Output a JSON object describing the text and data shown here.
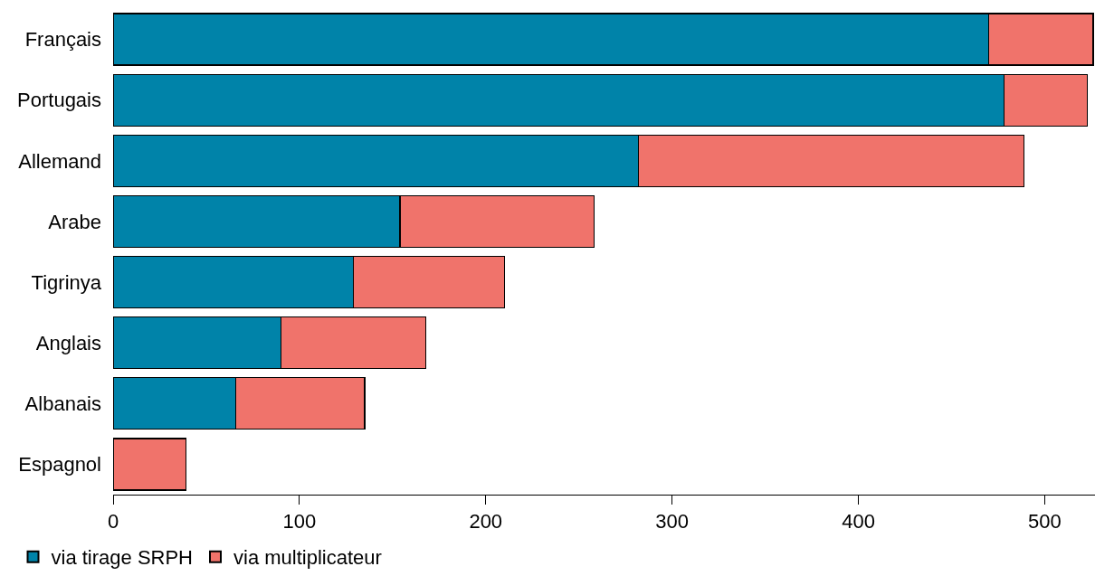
{
  "chart_data": {
    "type": "bar",
    "orientation": "horizontal",
    "stacked": true,
    "categories": [
      "Français",
      "Portugais",
      "Allemand",
      "Arabe",
      "Tigrinya",
      "Anglais",
      "Albanais",
      "Espagnol"
    ],
    "series": [
      {
        "name": "via tirage SRPH",
        "color": "#0083a9",
        "values": [
          470,
          478,
          282,
          154,
          129,
          90,
          66,
          0
        ]
      },
      {
        "name": "via multiplicateur",
        "color": "#f0736b",
        "values": [
          56,
          45,
          207,
          104,
          81,
          78,
          69,
          39
        ]
      }
    ],
    "xlim": [
      0,
      527
    ],
    "xticks": [
      0,
      100,
      200,
      300,
      400,
      500
    ],
    "legend": "bottom left"
  }
}
